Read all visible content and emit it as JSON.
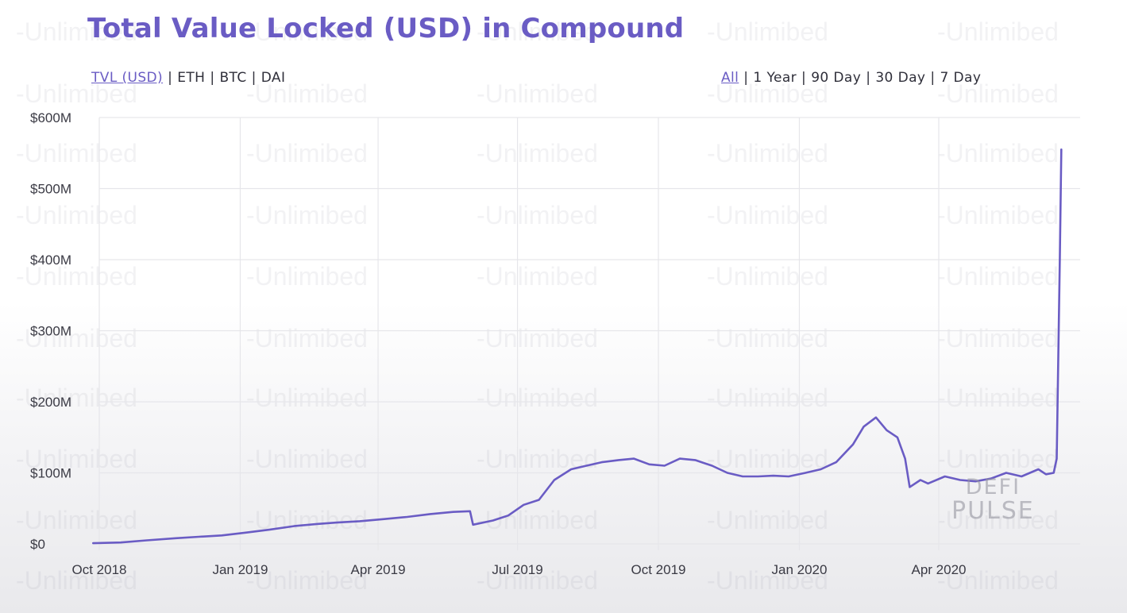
{
  "header": {
    "title": "Total Value Locked (USD) in Compound"
  },
  "metric_nav": {
    "options": [
      "TVL (USD)",
      "ETH",
      "BTC",
      "DAI"
    ],
    "active": "TVL (USD)"
  },
  "range_nav": {
    "options": [
      "All",
      "1 Year",
      "90 Day",
      "30 Day",
      "7 Day"
    ],
    "active": "All"
  },
  "watermark": {
    "text": "-Unlimibed"
  },
  "logo": {
    "line1": "DEFI",
    "line2": "PULSE"
  },
  "colors": {
    "title": "#6a5cc4",
    "line": "#6a5cc4",
    "grid": "#e6e6ea"
  },
  "chart_data": {
    "type": "line",
    "title": "Total Value Locked (USD) in Compound",
    "xlabel": "",
    "ylabel": "",
    "x_ticks": [
      "Oct 2018",
      "Jan 2019",
      "Apr 2019",
      "Jul 2019",
      "Oct 2019",
      "Jan 2020",
      "Apr 2020"
    ],
    "y_ticks": [
      "$0",
      "$100M",
      "$200M",
      "$300M",
      "$400M",
      "$500M",
      "$600M"
    ],
    "ylim": [
      0,
      600
    ],
    "y_unit": "USD millions",
    "grid": true,
    "legend": "none",
    "series": [
      {
        "x": [
          "2018-09-27",
          "2018-10-15",
          "2018-11-01",
          "2018-11-20",
          "2018-12-05",
          "2018-12-20",
          "2019-01-05",
          "2019-01-20",
          "2019-02-05",
          "2019-02-20",
          "2019-03-05",
          "2019-03-20",
          "2019-04-05",
          "2019-04-20",
          "2019-05-05",
          "2019-05-20",
          "2019-05-31",
          "2019-06-02",
          "2019-06-15",
          "2019-06-25",
          "2019-07-05",
          "2019-07-15",
          "2019-07-25",
          "2019-08-05",
          "2019-08-15",
          "2019-08-25",
          "2019-09-05",
          "2019-09-15",
          "2019-09-25",
          "2019-10-05",
          "2019-10-15",
          "2019-10-25",
          "2019-11-05",
          "2019-11-15",
          "2019-11-25",
          "2019-12-05",
          "2019-12-15",
          "2019-12-25",
          "2020-01-05",
          "2020-01-15",
          "2020-01-25",
          "2020-02-05",
          "2020-02-12",
          "2020-02-20",
          "2020-02-27",
          "2020-03-05",
          "2020-03-10",
          "2020-03-13",
          "2020-03-20",
          "2020-03-25",
          "2020-04-05",
          "2020-04-15",
          "2020-04-25",
          "2020-05-05",
          "2020-05-15",
          "2020-05-25",
          "2020-06-05",
          "2020-06-10",
          "2020-06-15",
          "2020-06-17",
          "2020-06-19",
          "2020-06-20"
        ],
        "y": [
          1,
          2,
          5,
          8,
          10,
          12,
          16,
          20,
          25,
          28,
          30,
          32,
          35,
          38,
          42,
          45,
          46,
          27,
          33,
          40,
          55,
          62,
          90,
          105,
          110,
          115,
          118,
          120,
          112,
          110,
          120,
          118,
          110,
          100,
          95,
          95,
          96,
          95,
          100,
          105,
          115,
          140,
          165,
          178,
          160,
          150,
          120,
          80,
          90,
          85,
          95,
          90,
          88,
          92,
          100,
          95,
          105,
          98,
          100,
          120,
          400,
          555
        ]
      }
    ]
  }
}
